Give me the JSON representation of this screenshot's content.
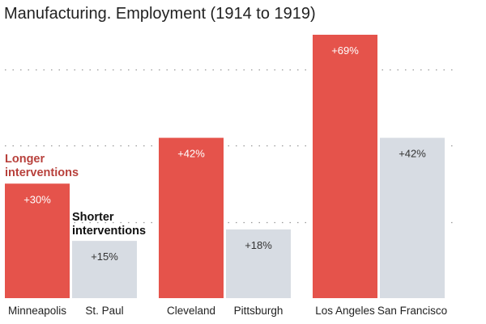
{
  "title": "Manufacturing. Employment (1914 to 1919)",
  "colors": {
    "longer": "#e5534b",
    "shorter": "#d7dce3",
    "longer_label": "#b8413c",
    "shorter_label": "#111111",
    "grid": "#999999"
  },
  "annotations": {
    "longer": [
      "Longer",
      "interventions"
    ],
    "shorter": [
      "Shorter",
      "interventions"
    ]
  },
  "chart_data": {
    "type": "bar",
    "title": "Manufacturing. Employment (1914 to 1919)",
    "xlabel": "",
    "ylabel": "",
    "ylim": [
      0,
      75
    ],
    "grid": true,
    "legend": "none",
    "categories": [
      "Minneapolis",
      "St. Paul",
      "Cleveland",
      "Pittsburgh",
      "Los Angeles",
      "San Francisco"
    ],
    "series": [
      {
        "name": "Longer interventions",
        "values": [
          30,
          null,
          42,
          null,
          69,
          null
        ]
      },
      {
        "name": "Shorter interventions",
        "values": [
          null,
          15,
          null,
          18,
          null,
          42
        ]
      }
    ],
    "bars": [
      {
        "city": "Minneapolis",
        "value": 30,
        "label": "+30%",
        "group": "longer"
      },
      {
        "city": "St. Paul",
        "value": 15,
        "label": "+15%",
        "group": "shorter"
      },
      {
        "city": "Cleveland",
        "value": 42,
        "label": "+42%",
        "group": "longer"
      },
      {
        "city": "Pittsburgh",
        "value": 18,
        "label": "+18%",
        "group": "shorter"
      },
      {
        "city": "Los Angeles",
        "value": 69,
        "label": "+69%",
        "group": "longer"
      },
      {
        "city": "San Francisco",
        "value": 42,
        "label": "+42%",
        "group": "shorter"
      }
    ],
    "gridlines": [
      20,
      40,
      60
    ]
  }
}
